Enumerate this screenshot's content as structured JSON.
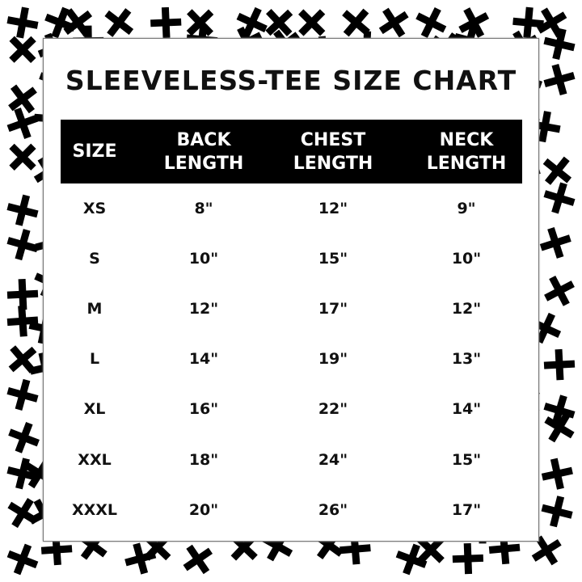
{
  "title": "SLEEVELESS-TEE SIZE CHART",
  "columns": [
    {
      "line1": "SIZE",
      "line2": ""
    },
    {
      "line1": "BACK",
      "line2": "LENGTH"
    },
    {
      "line1": "CHEST",
      "line2": "LENGTH"
    },
    {
      "line1": "NECK",
      "line2": "LENGTH"
    }
  ],
  "rows": [
    [
      "XS",
      "8\"",
      "12\"",
      "9\""
    ],
    [
      "S",
      "10\"",
      "15\"",
      "10\""
    ],
    [
      "M",
      "12\"",
      "17\"",
      "12\""
    ],
    [
      "L",
      "14\"",
      "19\"",
      "13\""
    ],
    [
      "XL",
      "16\"",
      "22\"",
      "14\""
    ],
    [
      "XXL",
      "18\"",
      "24\"",
      "15\""
    ],
    [
      "XXXL",
      "20\"",
      "26\"",
      "17\""
    ]
  ],
  "colors": {
    "header_bg": "#000000",
    "header_text": "#ffffff",
    "background_pattern": "black crosses on white"
  }
}
